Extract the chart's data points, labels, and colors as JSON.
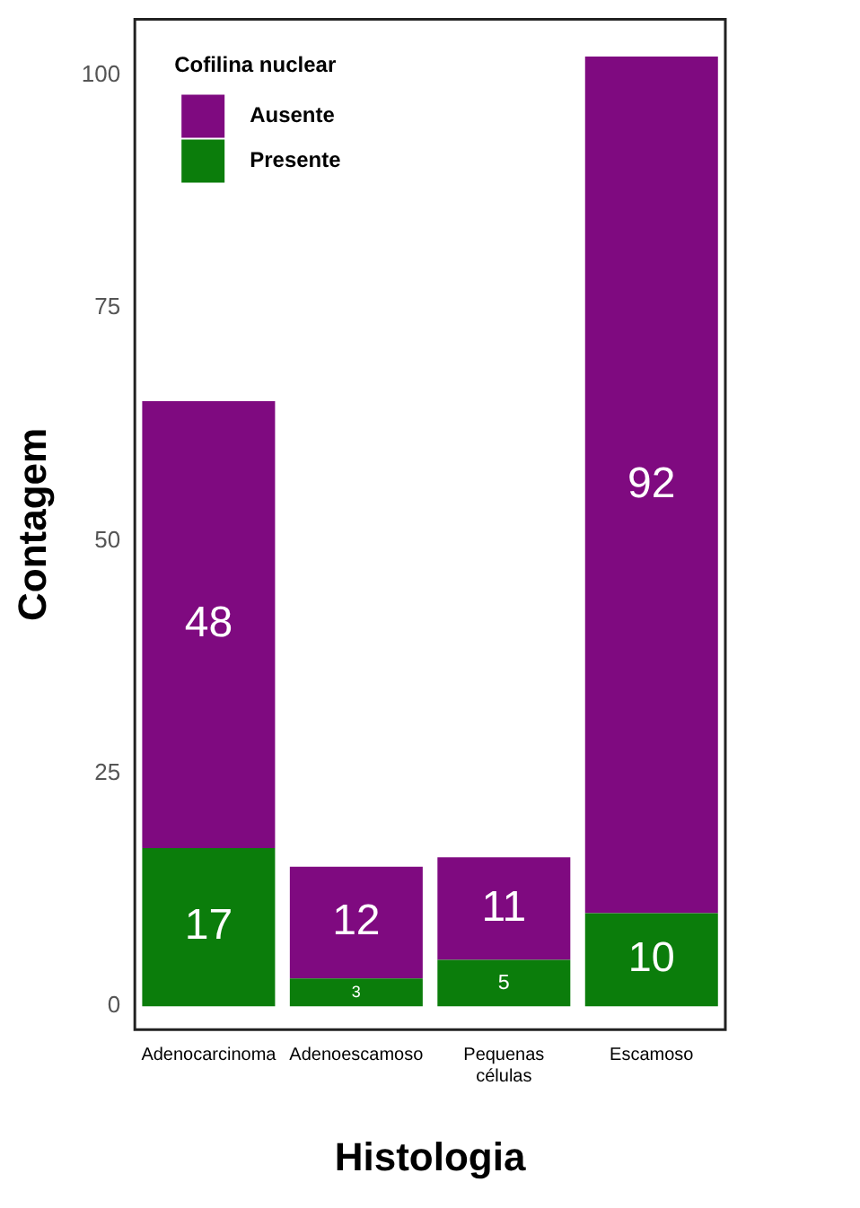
{
  "chart_data": {
    "type": "bar",
    "stacked": true,
    "xlabel": "Histologia",
    "ylabel": "Contagem",
    "legend_title": "Cofilina nuclear",
    "legend": "top left",
    "data_labels": true,
    "grid": false,
    "categories": [
      "Adenocarcinoma",
      "Adenoescamoso",
      "Pequenas células",
      "Escamoso"
    ],
    "series": [
      {
        "name": "Presente",
        "color": "#0b7d0b",
        "values": [
          17,
          3,
          5,
          10
        ]
      },
      {
        "name": "Ausente",
        "color": "#7f0a80",
        "values": [
          48,
          12,
          11,
          92
        ]
      }
    ],
    "ylim": [
      -2.5,
      106
    ],
    "yticks": [
      0,
      25,
      50,
      75,
      100
    ]
  }
}
